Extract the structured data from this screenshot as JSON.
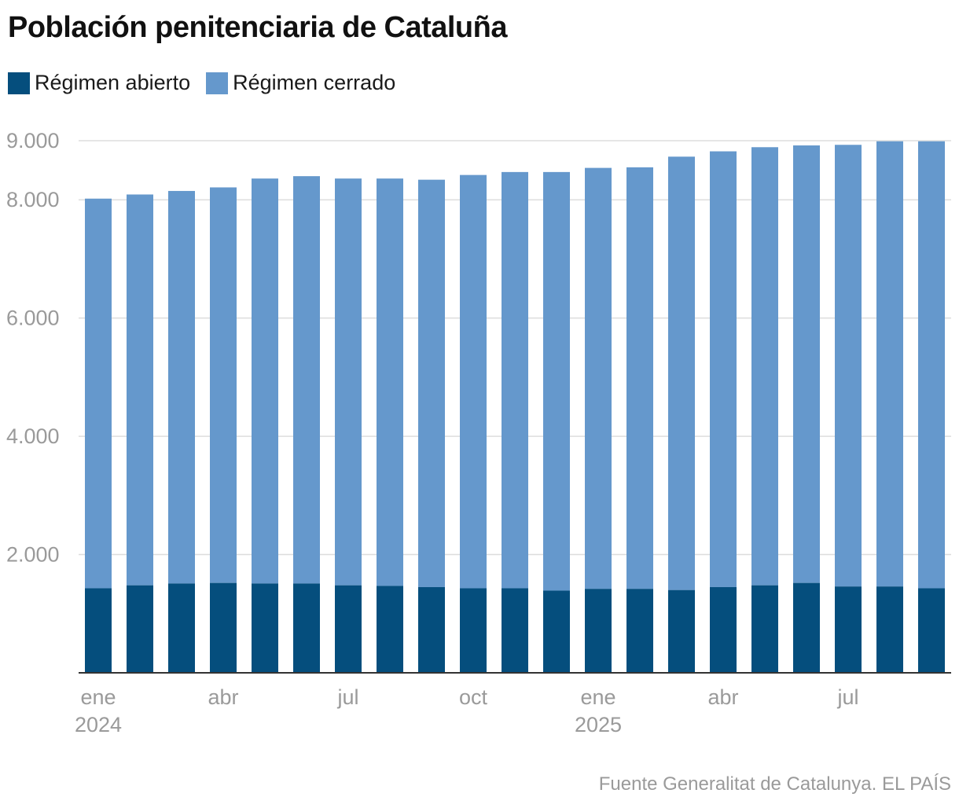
{
  "title": "Población penitenciaria de Cataluña",
  "source": "Fuente Generalitat de Catalunya. EL PAÍS",
  "colors": {
    "open": "#054e7d",
    "closed": "#6598cc",
    "grid": "#dddddd",
    "axis": "#333333",
    "tick_text": "#9a9a9a"
  },
  "chart_data": {
    "type": "bar",
    "stacked": true,
    "categories": [
      "2024-01",
      "2024-02",
      "2024-03",
      "2024-04",
      "2024-05",
      "2024-06",
      "2024-07",
      "2024-08",
      "2024-09",
      "2024-10",
      "2024-11",
      "2024-12",
      "2025-01",
      "2025-02",
      "2025-03",
      "2025-04",
      "2025-05",
      "2025-06",
      "2025-07",
      "2025-08",
      "2025-09"
    ],
    "series": [
      {
        "name": "Régimen abierto",
        "values": [
          1430,
          1480,
          1510,
          1520,
          1510,
          1510,
          1480,
          1470,
          1450,
          1430,
          1430,
          1390,
          1420,
          1420,
          1400,
          1450,
          1480,
          1520,
          1460,
          1460,
          1430
        ]
      },
      {
        "name": "Régimen cerrado",
        "values": [
          6590,
          6610,
          6640,
          6690,
          6850,
          6890,
          6880,
          6890,
          6890,
          6990,
          7040,
          7080,
          7120,
          7130,
          7330,
          7370,
          7410,
          7400,
          7470,
          7530,
          7560
        ]
      }
    ],
    "ylim": [
      0,
      9000
    ],
    "yticks": [
      2000,
      4000,
      6000,
      8000,
      9000
    ],
    "ytick_labels": [
      "2.000",
      "4.000",
      "6.000",
      "8.000",
      "9.000"
    ],
    "xticks": [
      {
        "index": 0,
        "label": "ene",
        "sub": "2024"
      },
      {
        "index": 3,
        "label": "abr",
        "sub": ""
      },
      {
        "index": 6,
        "label": "jul",
        "sub": ""
      },
      {
        "index": 9,
        "label": "oct",
        "sub": ""
      },
      {
        "index": 12,
        "label": "ene",
        "sub": "2025"
      },
      {
        "index": 15,
        "label": "abr",
        "sub": ""
      },
      {
        "index": 18,
        "label": "jul",
        "sub": ""
      }
    ],
    "grid": true,
    "legend_position": "top-left"
  }
}
